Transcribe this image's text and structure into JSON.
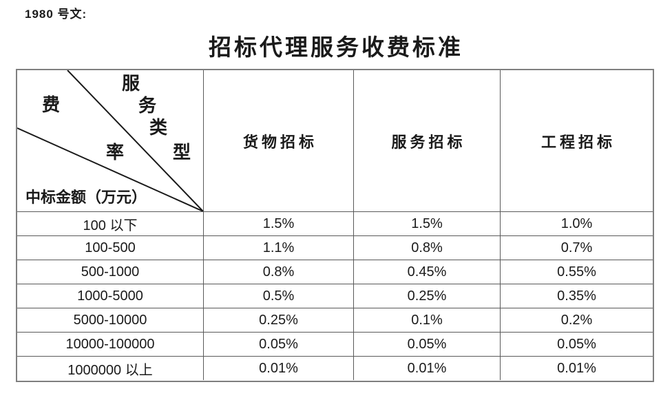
{
  "header": {
    "doc_label": "1980 号文:",
    "title": "招标代理服务收费标准"
  },
  "colors": {
    "text": "#1a1a1a",
    "outer_border": "#7f7f7f",
    "inner_border": "#595959",
    "diagonal_line": "#1a1a1a"
  },
  "table": {
    "corner": {
      "service_type_chars": [
        "服",
        "务",
        "类",
        "型"
      ],
      "fee_rate_chars": [
        "费",
        "率"
      ],
      "amount_label": "中标金额（万元）"
    },
    "columns": [
      "货物招标",
      "服务招标",
      "工程招标"
    ],
    "rows": [
      {
        "range": "100 以下",
        "values": [
          "1.5%",
          "1.5%",
          "1.0%"
        ]
      },
      {
        "range": "100-500",
        "values": [
          "1.1%",
          "0.8%",
          "0.7%"
        ]
      },
      {
        "range": "500-1000",
        "values": [
          "0.8%",
          "0.45%",
          "0.55%"
        ]
      },
      {
        "range": "1000-5000",
        "values": [
          "0.5%",
          "0.25%",
          "0.35%"
        ]
      },
      {
        "range": "5000-10000",
        "values": [
          "0.25%",
          "0.1%",
          "0.2%"
        ]
      },
      {
        "range": "10000-100000",
        "values": [
          "0.05%",
          "0.05%",
          "0.05%"
        ]
      },
      {
        "range": "1000000 以上",
        "values": [
          "0.01%",
          "0.01%",
          "0.01%"
        ]
      }
    ]
  }
}
